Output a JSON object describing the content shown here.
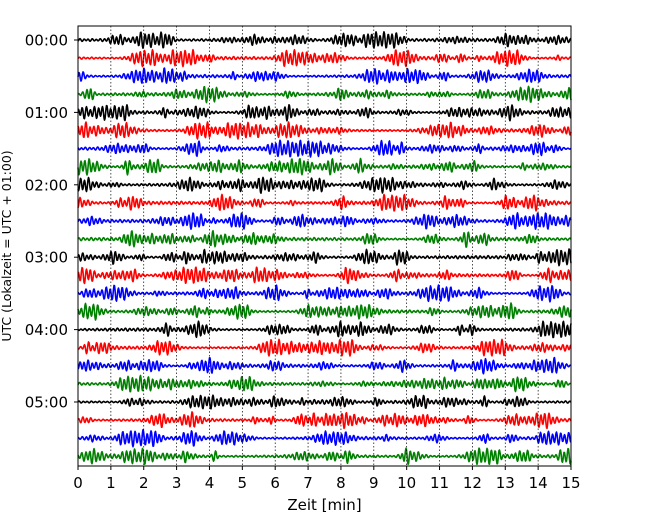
{
  "chart_data": {
    "type": "line",
    "subtype": "helicorder-seismogram",
    "xlabel": "Zeit  [min]",
    "ylabel": "UTC (Lokalzeit = UTC + 01:00)",
    "xlim": [
      0,
      15
    ],
    "x_ticks": [
      "0",
      "1",
      "2",
      "3",
      "4",
      "5",
      "6",
      "7",
      "8",
      "9",
      "10",
      "11",
      "12",
      "13",
      "14",
      "15"
    ],
    "y_ticks": [
      "00:00",
      "01:00",
      "02:00",
      "03:00",
      "04:00",
      "05:00"
    ],
    "trace_minutes_per_line": 15,
    "trace_count": 24,
    "color_cycle": [
      "#000000",
      "#ff0000",
      "#0000ff",
      "#008000"
    ],
    "x_grid": "dotted",
    "y_grid": false,
    "legend": "none"
  }
}
